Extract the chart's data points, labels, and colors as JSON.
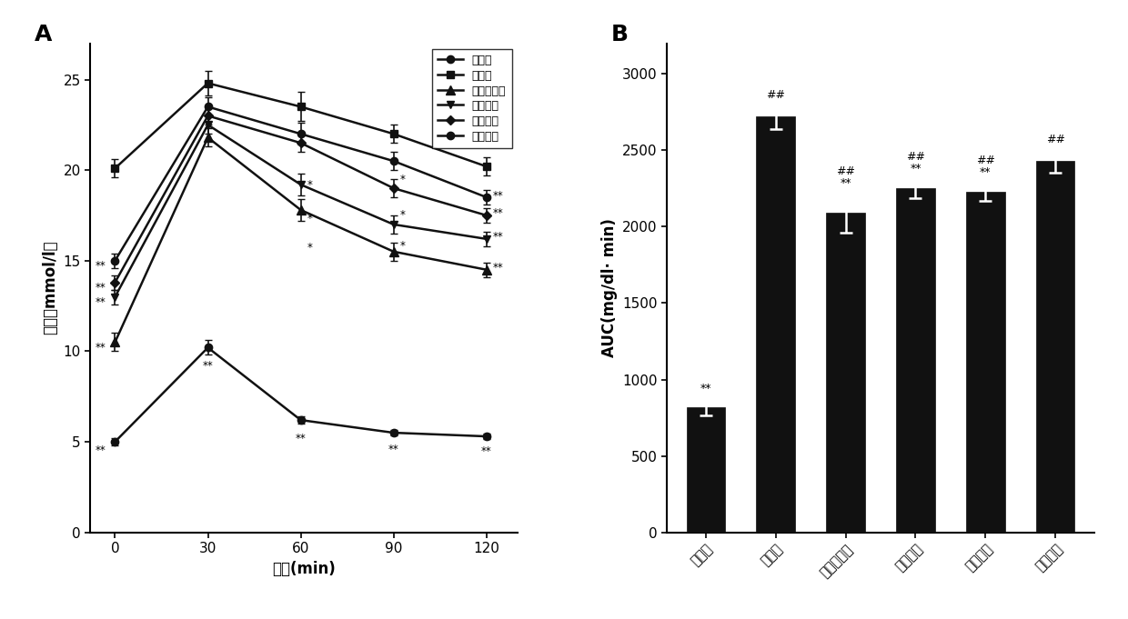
{
  "panel_A": {
    "title": "A",
    "xlabel": "时间(min)",
    "ylabel": "血糖（mmol/l）",
    "timepoints": [
      0,
      30,
      60,
      90,
      120
    ],
    "series": [
      {
        "label": "正常组",
        "marker": "o",
        "values": [
          5.0,
          10.2,
          6.2,
          5.5,
          5.3
        ],
        "errors": [
          0.2,
          0.4,
          0.2,
          0.15,
          0.15
        ]
      },
      {
        "label": "高糖组",
        "marker": "s",
        "values": [
          20.1,
          24.8,
          23.5,
          22.0,
          20.2
        ],
        "errors": [
          0.5,
          0.7,
          0.8,
          0.5,
          0.5
        ]
      },
      {
        "label": "二甲双胍组",
        "marker": "^",
        "values": [
          10.5,
          21.8,
          17.8,
          15.5,
          14.5
        ],
        "errors": [
          0.5,
          0.5,
          0.6,
          0.5,
          0.4
        ]
      },
      {
        "label": "高剂量组",
        "marker": "v",
        "values": [
          13.0,
          22.5,
          19.2,
          17.0,
          16.2
        ],
        "errors": [
          0.4,
          0.5,
          0.6,
          0.5,
          0.4
        ]
      },
      {
        "label": "中剂量组",
        "marker": "D",
        "values": [
          13.8,
          23.0,
          21.5,
          19.0,
          17.5
        ],
        "errors": [
          0.4,
          0.5,
          0.5,
          0.5,
          0.4
        ]
      },
      {
        "label": "低剂量组",
        "marker": "o",
        "values": [
          15.0,
          23.5,
          22.0,
          20.5,
          18.5
        ],
        "errors": [
          0.4,
          0.5,
          0.6,
          0.5,
          0.4
        ]
      }
    ],
    "ylim": [
      0,
      27
    ],
    "yticks": [
      0,
      5,
      10,
      15,
      20,
      25
    ],
    "xlim": [
      -8,
      130
    ]
  },
  "panel_B": {
    "title": "B",
    "xlabel": "",
    "ylabel": "AUC(mg/dl· min)",
    "categories": [
      "正常组",
      "高糖组",
      "二甲双胍组",
      "高剂量组",
      "中剂量组",
      "低剂量组"
    ],
    "values": [
      820,
      2720,
      2090,
      2250,
      2230,
      2430
    ],
    "errors": [
      55,
      80,
      130,
      65,
      60,
      75
    ],
    "bar_color": "#111111",
    "ylim": [
      0,
      3200
    ],
    "yticks": [
      0,
      500,
      1000,
      1500,
      2000,
      2500,
      3000
    ],
    "annotations": [
      "**",
      "##",
      "##\n**",
      "##\n**",
      "##\n**",
      "##"
    ],
    "annot_offsets": [
      0,
      0,
      0,
      0,
      0,
      0
    ]
  },
  "line_color": "#111111",
  "font_size": 10,
  "label_font_size": 12,
  "title_font_size": 18
}
